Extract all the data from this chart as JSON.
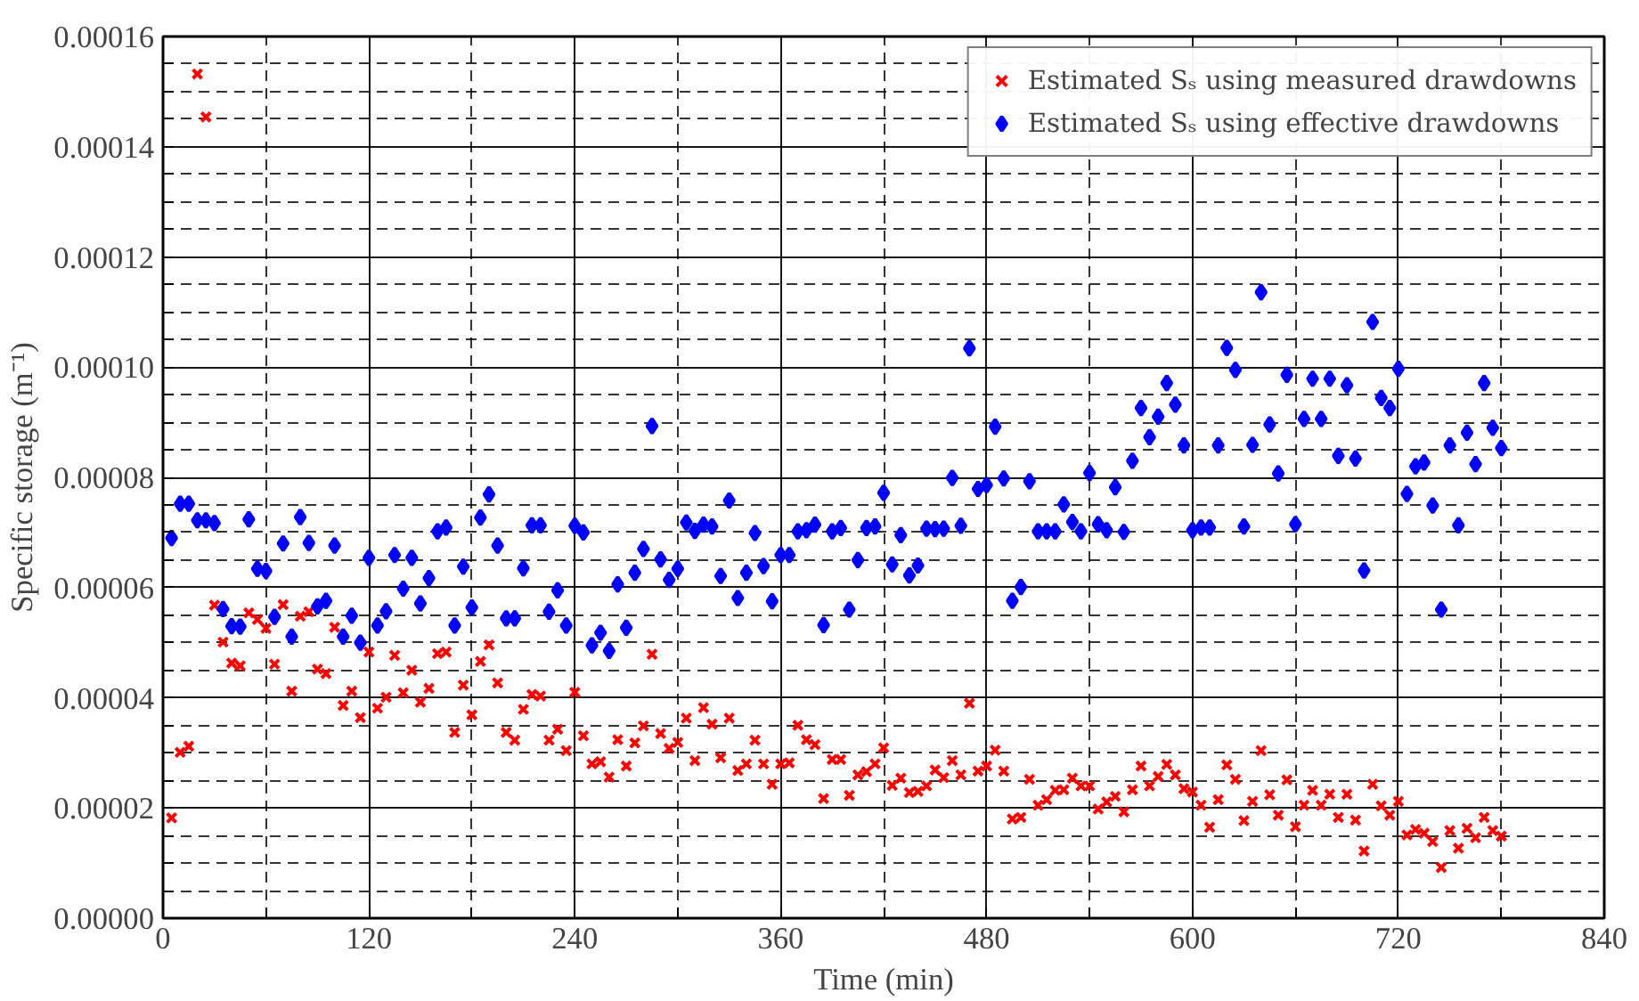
{
  "chart_data": {
    "type": "scatter",
    "xlabel": "Time (min)",
    "ylabel": "Specific storage (m⁻¹)",
    "x": [
      5,
      10,
      15,
      20,
      25,
      30,
      35,
      40,
      45,
      50,
      55,
      60,
      65,
      70,
      75,
      80,
      85,
      90,
      95,
      100,
      105,
      110,
      115,
      120,
      125,
      130,
      135,
      140,
      145,
      150,
      155,
      160,
      165,
      170,
      175,
      180,
      185,
      190,
      195,
      200,
      205,
      210,
      215,
      220,
      225,
      230,
      235,
      240,
      245,
      250,
      255,
      260,
      265,
      270,
      275,
      280,
      285,
      290,
      295,
      300,
      305,
      310,
      315,
      320,
      325,
      330,
      335,
      340,
      345,
      350,
      355,
      360,
      365,
      370,
      375,
      380,
      385,
      390,
      395,
      400,
      405,
      410,
      415,
      420,
      425,
      430,
      435,
      440,
      445,
      450,
      455,
      460,
      465,
      470,
      475,
      480,
      485,
      490,
      495,
      500,
      505,
      510,
      515,
      520,
      525,
      530,
      535,
      540,
      545,
      550,
      555,
      560,
      565,
      570,
      575,
      580,
      585,
      590,
      595,
      600,
      605,
      610,
      615,
      620,
      625,
      630,
      635,
      640,
      645,
      650,
      655,
      660,
      665,
      670,
      675,
      680,
      685,
      690,
      695,
      700,
      705,
      710,
      715,
      720,
      725,
      730,
      735,
      740,
      745,
      750,
      755,
      760,
      765,
      770,
      775,
      780
    ],
    "series": [
      {
        "name": "Estimated Sₛ using measured drawdowns",
        "color": "#ff0000",
        "marker": "cross",
        "values": [
          1.82e-05,
          3.01e-05,
          3.12e-05,
          0.0001532,
          0.0001454,
          5.68e-05,
          5.01e-05,
          4.63e-05,
          4.58e-05,
          5.54e-05,
          5.42e-05,
          5.26e-05,
          4.61e-05,
          5.69e-05,
          4.12e-05,
          5.48e-05,
          5.56e-05,
          4.52e-05,
          4.44e-05,
          5.28e-05,
          3.86e-05,
          4.12e-05,
          3.64e-05,
          4.83e-05,
          3.81e-05,
          4.01e-05,
          4.77e-05,
          4.09e-05,
          4.5e-05,
          3.92e-05,
          4.17e-05,
          4.8e-05,
          4.83e-05,
          3.37e-05,
          4.23e-05,
          3.69e-05,
          4.66e-05,
          4.96e-05,
          4.27e-05,
          3.37e-05,
          3.23e-05,
          3.79e-05,
          4.06e-05,
          4.03e-05,
          3.23e-05,
          3.43e-05,
          3.04e-05,
          4.1e-05,
          3.31e-05,
          2.8e-05,
          2.84e-05,
          2.56e-05,
          3.24e-05,
          2.76e-05,
          3.18e-05,
          3.49e-05,
          4.79e-05,
          3.35e-05,
          3.08e-05,
          3.19e-05,
          3.63e-05,
          2.86e-05,
          3.82e-05,
          3.52e-05,
          2.91e-05,
          3.63e-05,
          2.68e-05,
          2.8e-05,
          3.23e-05,
          2.8e-05,
          2.43e-05,
          2.8e-05,
          2.82e-05,
          3.5e-05,
          3.24e-05,
          3.15e-05,
          2.17e-05,
          2.88e-05,
          2.88e-05,
          2.23e-05,
          2.6e-05,
          2.66e-05,
          2.8e-05,
          3.09e-05,
          2.41e-05,
          2.54e-05,
          2.28e-05,
          2.3e-05,
          2.4e-05,
          2.69e-05,
          2.55e-05,
          2.86e-05,
          2.6e-05,
          3.9e-05,
          2.67e-05,
          2.76e-05,
          3.05e-05,
          2.67e-05,
          1.8e-05,
          1.83e-05,
          2.52e-05,
          2.05e-05,
          2.15e-05,
          2.32e-05,
          2.33e-05,
          2.54e-05,
          2.4e-05,
          2.4e-05,
          1.98e-05,
          2.11e-05,
          2.21e-05,
          1.93e-05,
          2.33e-05,
          2.76e-05,
          2.4e-05,
          2.57e-05,
          2.79e-05,
          2.6e-05,
          2.35e-05,
          2.29e-05,
          2.05e-05,
          1.65e-05,
          2.15e-05,
          2.78e-05,
          2.52e-05,
          1.77e-05,
          2.12e-05,
          3.04e-05,
          2.24e-05,
          1.87e-05,
          2.51e-05,
          1.66e-05,
          2.05e-05,
          2.32e-05,
          2.05e-05,
          2.25e-05,
          1.83e-05,
          2.25e-05,
          1.78e-05,
          1.22e-05,
          2.43e-05,
          2.04e-05,
          1.87e-05,
          2.12e-05,
          1.51e-05,
          1.61e-05,
          1.54e-05,
          1.39e-05,
          9.2e-06,
          1.59e-05,
          1.27e-05,
          1.63e-05,
          1.46e-05,
          1.83e-05,
          1.59e-05,
          1.49e-05
        ]
      },
      {
        "name": "Estimated Sₛ using effective drawdowns",
        "color": "#0000ff",
        "marker": "diamond",
        "values": [
          6.9e-05,
          7.52e-05,
          7.52e-05,
          7.22e-05,
          7.22e-05,
          7.17e-05,
          5.61e-05,
          5.3e-05,
          5.29e-05,
          7.24e-05,
          6.34e-05,
          6.3e-05,
          5.47e-05,
          6.8e-05,
          5.11e-05,
          7.28e-05,
          6.81e-05,
          5.66e-05,
          5.76e-05,
          6.76e-05,
          5.11e-05,
          5.49e-05,
          5e-05,
          6.54e-05,
          5.31e-05,
          5.57e-05,
          6.59e-05,
          5.98e-05,
          6.54e-05,
          5.71e-05,
          6.17e-05,
          7.02e-05,
          7.09e-05,
          5.31e-05,
          6.38e-05,
          5.64e-05,
          7.27e-05,
          7.69e-05,
          6.76e-05,
          5.44e-05,
          5.44e-05,
          6.35e-05,
          7.13e-05,
          7.13e-05,
          5.56e-05,
          5.95e-05,
          5.31e-05,
          7.12e-05,
          7e-05,
          4.95e-05,
          5.18e-05,
          4.85e-05,
          6.06e-05,
          5.27e-05,
          6.27e-05,
          6.7e-05,
          8.93e-05,
          6.51e-05,
          6.14e-05,
          6.34e-05,
          7.18e-05,
          7.03e-05,
          7.14e-05,
          7.11e-05,
          6.21e-05,
          7.58e-05,
          5.81e-05,
          6.27e-05,
          6.99e-05,
          6.39e-05,
          5.75e-05,
          6.59e-05,
          6.59e-05,
          7.02e-05,
          7.04e-05,
          7.14e-05,
          5.32e-05,
          7.02e-05,
          7.08e-05,
          5.6e-05,
          6.5e-05,
          7.08e-05,
          7.11e-05,
          7.72e-05,
          6.42e-05,
          6.95e-05,
          6.22e-05,
          6.4e-05,
          7.07e-05,
          7.06e-05,
          7.07e-05,
          7.99e-05,
          7.12e-05,
          0.0001034,
          7.79e-05,
          7.86e-05,
          8.92e-05,
          7.98e-05,
          5.76e-05,
          6.01e-05,
          7.93e-05,
          7.02e-05,
          7.02e-05,
          7.02e-05,
          7.51e-05,
          7.19e-05,
          7.02e-05,
          8.08e-05,
          7.15e-05,
          7.04e-05,
          7.82e-05,
          7.01e-05,
          8.3e-05,
          9.26e-05,
          8.73e-05,
          9.1e-05,
          9.71e-05,
          9.32e-05,
          8.58e-05,
          7.04e-05,
          7.09e-05,
          7.09e-05,
          8.58e-05,
          0.0001035,
          9.95e-05,
          7.11e-05,
          8.59e-05,
          0.0001136,
          8.96e-05,
          8.07e-05,
          9.86e-05,
          7.15e-05,
          9.06e-05,
          9.79e-05,
          9.06e-05,
          9.79e-05,
          8.39e-05,
          9.67e-05,
          8.34e-05,
          6.31e-05,
          0.0001082,
          9.44e-05,
          9.26e-05,
          9.97e-05,
          7.7e-05,
          8.2e-05,
          8.27e-05,
          7.49e-05,
          5.6e-05,
          8.58e-05,
          7.13e-05,
          8.81e-05,
          8.24e-05,
          9.71e-05,
          8.9e-05,
          8.53e-05
        ]
      }
    ],
    "xlim": [
      0,
      840
    ],
    "xticks": [
      0,
      {
        "value": 60,
        "label": null
      },
      120,
      {
        "value": 180,
        "label": null
      },
      240,
      {
        "value": 300,
        "label": null
      },
      360,
      {
        "value": 420,
        "label": null
      },
      480,
      {
        "value": 540,
        "label": null
      },
      600,
      {
        "value": 660,
        "label": null
      },
      720,
      {
        "value": 780,
        "label": null
      },
      840
    ],
    "ylim": [
      0,
      0.00016
    ],
    "yticks": [
      {
        "value": 0,
        "label": "0.00000"
      },
      {
        "value": 5e-06,
        "label": null
      },
      {
        "value": 1e-05,
        "label": null
      },
      {
        "value": 1.5e-05,
        "label": null
      },
      {
        "value": 2e-05,
        "label": "0.00002"
      },
      {
        "value": 2.5e-05,
        "label": null
      },
      {
        "value": 3e-05,
        "label": null
      },
      {
        "value": 3.5e-05,
        "label": null
      },
      {
        "value": 4e-05,
        "label": "0.00004"
      },
      {
        "value": 4.5e-05,
        "label": null
      },
      {
        "value": 5e-05,
        "label": null
      },
      {
        "value": 5.5e-05,
        "label": null
      },
      {
        "value": 6e-05,
        "label": "0.00006"
      },
      {
        "value": 6.5e-05,
        "label": null
      },
      {
        "value": 7e-05,
        "label": null
      },
      {
        "value": 7.5e-05,
        "label": null
      },
      {
        "value": 8e-05,
        "label": "0.00008"
      },
      {
        "value": 8.5e-05,
        "label": null
      },
      {
        "value": 9e-05,
        "label": null
      },
      {
        "value": 9.5e-05,
        "label": null
      },
      {
        "value": 0.0001,
        "label": "0.00010"
      },
      {
        "value": 0.000105,
        "label": null
      },
      {
        "value": 0.00011,
        "label": null
      },
      {
        "value": 0.000115,
        "label": null
      },
      {
        "value": 0.00012,
        "label": "0.00012"
      },
      {
        "value": 0.000125,
        "label": null
      },
      {
        "value": 0.00013,
        "label": null
      },
      {
        "value": 0.000135,
        "label": null
      },
      {
        "value": 0.00014,
        "label": "0.00014"
      },
      {
        "value": 0.000145,
        "label": null
      },
      {
        "value": 0.00015,
        "label": null
      },
      {
        "value": 0.000155,
        "label": null
      },
      {
        "value": 0.00016,
        "label": "0.00016"
      }
    ],
    "grid": true,
    "legend": "top right"
  }
}
